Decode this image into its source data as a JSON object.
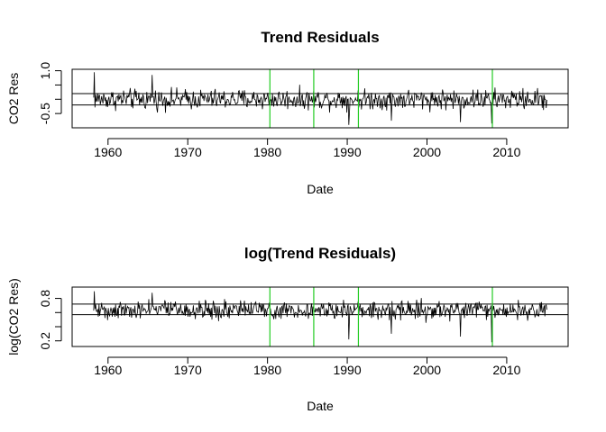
{
  "chart_data": [
    {
      "type": "line",
      "title": "Trend Residuals",
      "xlabel": "Date",
      "ylabel": "CO2 Res",
      "x_range": [
        1958.2,
        2015.0
      ],
      "xlim": [
        1955.5,
        2017.7
      ],
      "ylim": [
        -1.0,
        1.05
      ],
      "x_ticks": [
        1960,
        1970,
        1980,
        1990,
        2000,
        2010
      ],
      "y_ticks": [
        -0.5,
        1.0
      ],
      "y_minor_ticks": [
        -0.5,
        0.0,
        0.5,
        1.0
      ],
      "hlines": [
        -0.2,
        0.2
      ],
      "hline_color": "#000000",
      "vlines": [
        1980.3,
        1985.8,
        1991.4,
        2008.2
      ],
      "vline_color": "#22cc22",
      "series_color": "#000000",
      "series_center": 0.0,
      "series_amplitude": 0.35,
      "notable_points": [
        {
          "x": 1958.3,
          "y": 0.95
        },
        {
          "x": 1965.5,
          "y": 0.85
        },
        {
          "x": 1990.2,
          "y": -0.9
        },
        {
          "x": 1995.5,
          "y": -0.75
        },
        {
          "x": 2004.2,
          "y": -0.8
        },
        {
          "x": 2008.1,
          "y": -0.85
        }
      ],
      "grid": false,
      "legend": "none"
    },
    {
      "type": "line",
      "title": "log(Trend Residuals)",
      "xlabel": "Date",
      "ylabel": "log(CO2 Res)",
      "x_range": [
        1958.2,
        2015.0
      ],
      "xlim": [
        1955.5,
        2017.7
      ],
      "ylim": [
        0.12,
        0.96
      ],
      "x_ticks": [
        1960,
        1970,
        1980,
        1990,
        2000,
        2010
      ],
      "y_ticks": [
        0.2,
        0.8
      ],
      "y_minor_ticks": [
        0.2,
        0.4,
        0.6,
        0.8
      ],
      "hlines": [
        0.57,
        0.72
      ],
      "hline_color": "#000000",
      "vlines": [
        1980.3,
        1985.8,
        1991.4,
        2008.2
      ],
      "vline_color": "#22cc22",
      "series_color": "#000000",
      "series_center": 0.64,
      "series_amplitude": 0.13,
      "notable_points": [
        {
          "x": 1958.3,
          "y": 0.9
        },
        {
          "x": 1965.5,
          "y": 0.88
        },
        {
          "x": 1990.2,
          "y": 0.22
        },
        {
          "x": 1995.5,
          "y": 0.3
        },
        {
          "x": 2004.2,
          "y": 0.26
        },
        {
          "x": 2008.1,
          "y": 0.18
        }
      ],
      "grid": false,
      "legend": "none"
    }
  ]
}
